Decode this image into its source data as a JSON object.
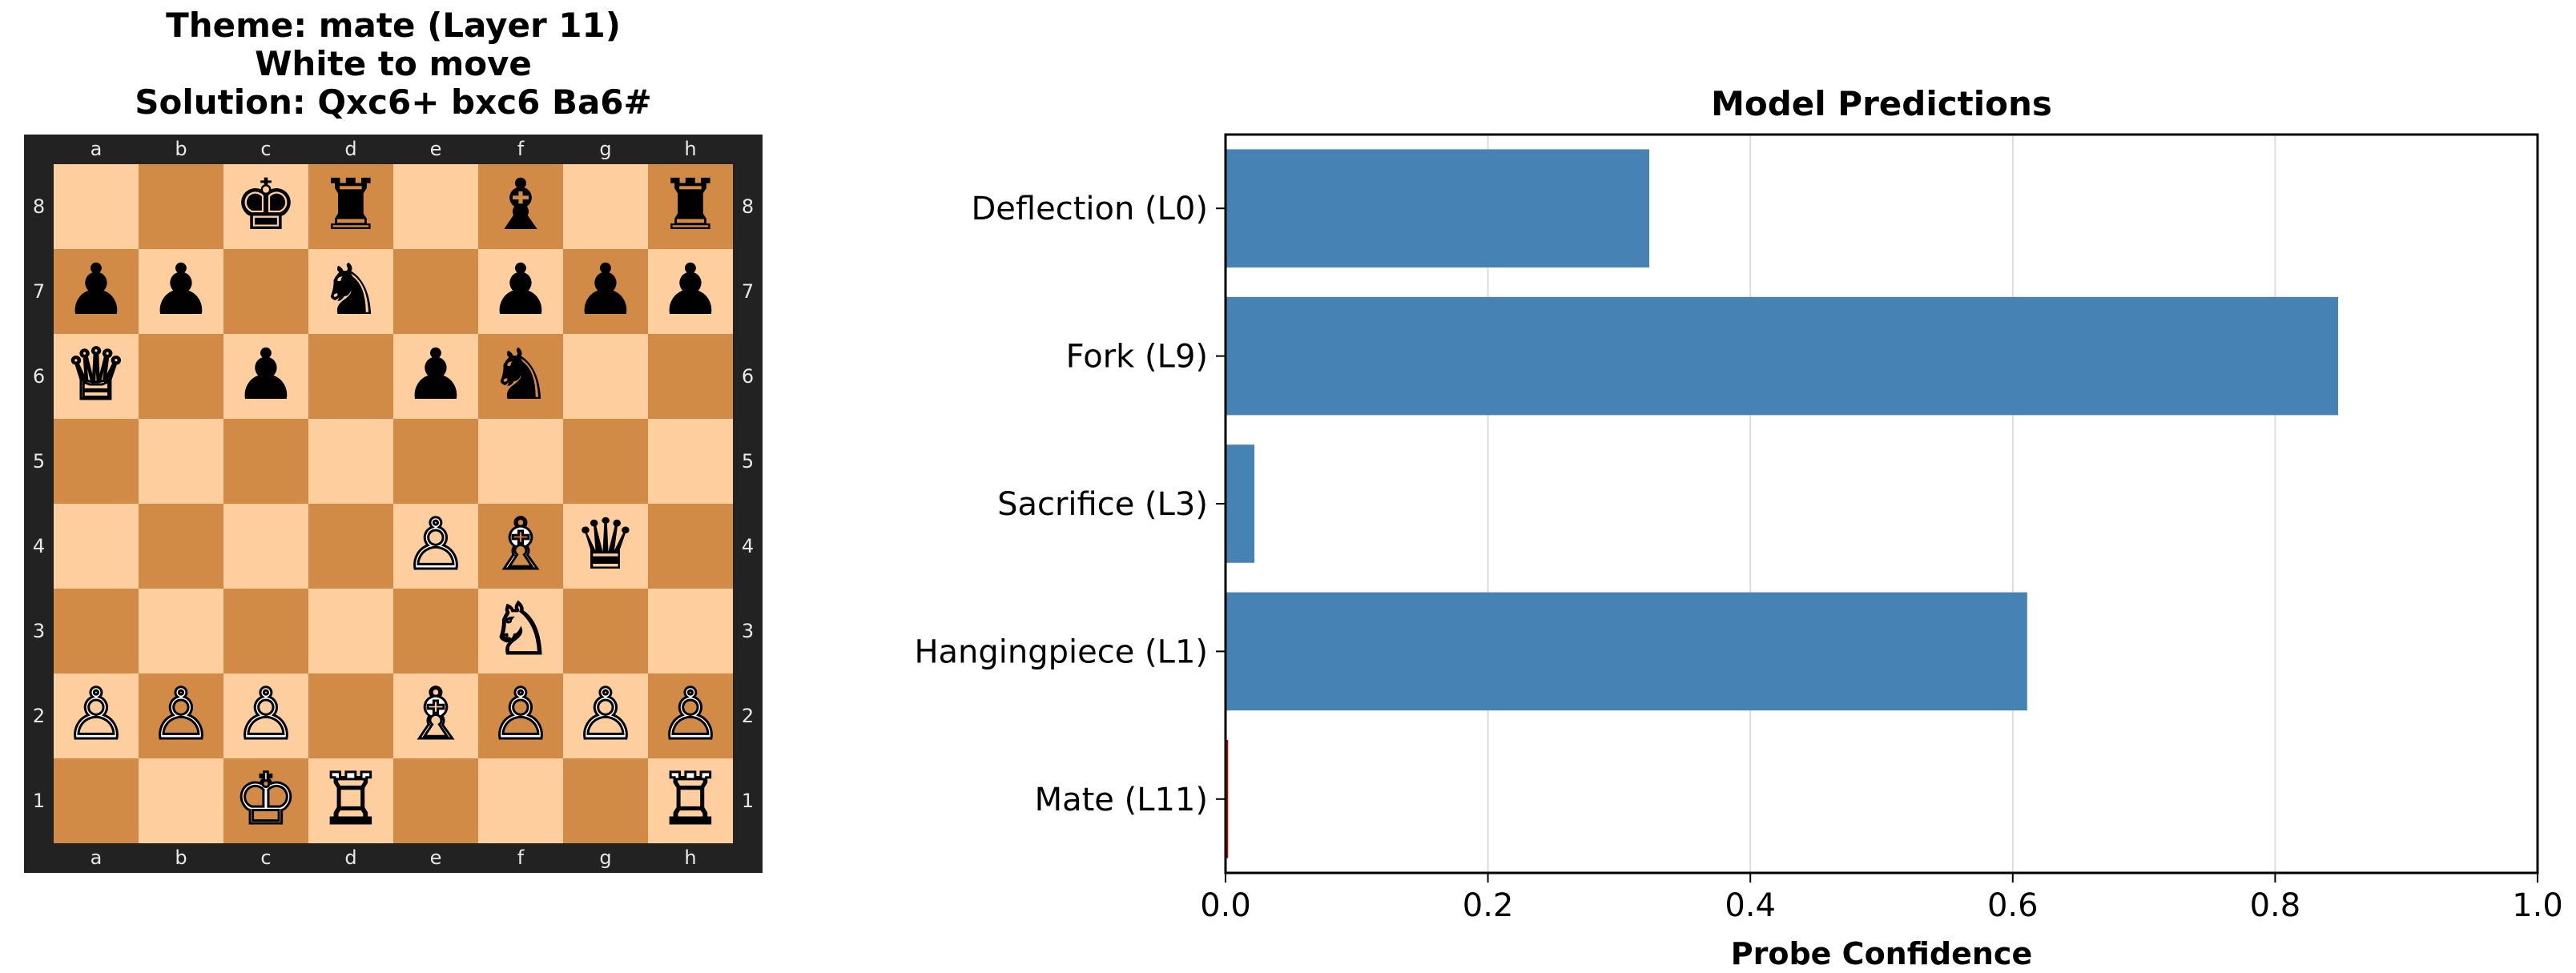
{
  "header": {
    "line1": "Theme: mate (Layer 11)",
    "line2": "White to move",
    "line3": "Solution: Qxc6+ bxc6 Ba6#"
  },
  "board": {
    "files": [
      "a",
      "b",
      "c",
      "d",
      "e",
      "f",
      "g",
      "h"
    ],
    "ranks": [
      "8",
      "7",
      "6",
      "5",
      "4",
      "3",
      "2",
      "1"
    ],
    "pieces": [
      {
        "square": "c8",
        "piece": "black-king",
        "glyph": "♚"
      },
      {
        "square": "d8",
        "piece": "black-rook",
        "glyph": "♜"
      },
      {
        "square": "f8",
        "piece": "black-bishop",
        "glyph": "♝"
      },
      {
        "square": "h8",
        "piece": "black-rook",
        "glyph": "♜"
      },
      {
        "square": "a7",
        "piece": "black-pawn",
        "glyph": "♟"
      },
      {
        "square": "b7",
        "piece": "black-pawn",
        "glyph": "♟"
      },
      {
        "square": "d7",
        "piece": "black-knight",
        "glyph": "♞"
      },
      {
        "square": "f7",
        "piece": "black-pawn",
        "glyph": "♟"
      },
      {
        "square": "g7",
        "piece": "black-pawn",
        "glyph": "♟"
      },
      {
        "square": "h7",
        "piece": "black-pawn",
        "glyph": "♟"
      },
      {
        "square": "a6",
        "piece": "white-queen",
        "glyph": "♕"
      },
      {
        "square": "c6",
        "piece": "black-pawn",
        "glyph": "♟"
      },
      {
        "square": "e6",
        "piece": "black-pawn",
        "glyph": "♟"
      },
      {
        "square": "f6",
        "piece": "black-knight",
        "glyph": "♞"
      },
      {
        "square": "e4",
        "piece": "white-pawn",
        "glyph": "♙"
      },
      {
        "square": "f4",
        "piece": "white-bishop",
        "glyph": "♗"
      },
      {
        "square": "g4",
        "piece": "black-queen",
        "glyph": "♛"
      },
      {
        "square": "f3",
        "piece": "white-knight",
        "glyph": "♘"
      },
      {
        "square": "a2",
        "piece": "white-pawn",
        "glyph": "♙"
      },
      {
        "square": "b2",
        "piece": "white-pawn",
        "glyph": "♙"
      },
      {
        "square": "c2",
        "piece": "white-pawn",
        "glyph": "♙"
      },
      {
        "square": "e2",
        "piece": "white-bishop",
        "glyph": "♗"
      },
      {
        "square": "f2",
        "piece": "white-pawn",
        "glyph": "♙"
      },
      {
        "square": "g2",
        "piece": "white-pawn",
        "glyph": "♙"
      },
      {
        "square": "h2",
        "piece": "white-pawn",
        "glyph": "♙"
      },
      {
        "square": "c1",
        "piece": "white-king",
        "glyph": "♔"
      },
      {
        "square": "d1",
        "piece": "white-rook",
        "glyph": "♖"
      },
      {
        "square": "h1",
        "piece": "white-rook",
        "glyph": "♖"
      }
    ],
    "light_color": "#ffce9e",
    "dark_color": "#d18b47",
    "frame_color": "#222222"
  },
  "chart_data": {
    "type": "bar",
    "orientation": "horizontal",
    "title": "Model Predictions",
    "xlabel": "Probe Confidence",
    "ylabel": "",
    "categories": [
      "Deflection (L0)",
      "Fork (L9)",
      "Sacrifice (L3)",
      "Hangingpiece (L1)",
      "Mate (L11)"
    ],
    "values": [
      0.323,
      0.848,
      0.022,
      0.611,
      0.002
    ],
    "bar_colors": [
      "#4682b4",
      "#4682b4",
      "#4682b4",
      "#4682b4",
      "#cc0000"
    ],
    "xlim": [
      0,
      1.0
    ],
    "xticks": [
      "0.0",
      "0.2",
      "0.4",
      "0.6",
      "0.8",
      "1.0"
    ],
    "xtick_values": [
      0,
      0.2,
      0.4,
      0.6,
      0.8,
      1.0
    ],
    "grid": "x"
  }
}
